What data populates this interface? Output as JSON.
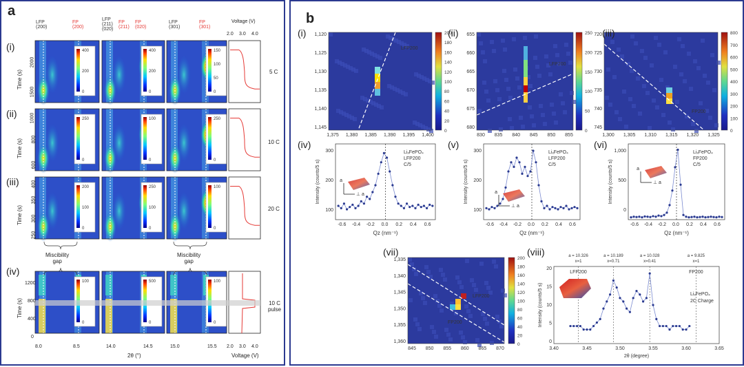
{
  "panel_a": {
    "label": "a",
    "top_labels": [
      {
        "text": "LFP",
        "sub": "(200)",
        "color": "#333"
      },
      {
        "text": "FP",
        "sub": "(200)",
        "color": "#e53935"
      },
      {
        "text": "LFP",
        "sub": "(211)\n(020)",
        "color": "#333"
      },
      {
        "text": "FP",
        "sub": "(211)",
        "color": "#e53935"
      },
      {
        "text": "FP",
        "sub": "(020)",
        "color": "#e53935"
      },
      {
        "text": "LFP",
        "sub": "(301)",
        "color": "#333"
      },
      {
        "text": "FP",
        "sub": "(301)",
        "color": "#e53935"
      }
    ],
    "voltage_axis_title": "Voltage (V)",
    "voltage_ticks": [
      "2.0",
      "3.0",
      "4.0"
    ],
    "rows": [
      {
        "label": "(i)",
        "rate": "5 C",
        "y_ticks": [
          "2000",
          "1500"
        ],
        "cb1": [
          "400",
          "200",
          "0"
        ],
        "cb2": [
          "400",
          "200",
          "0"
        ],
        "cb3": [
          "150",
          "100",
          "50",
          "0"
        ]
      },
      {
        "label": "(ii)",
        "rate": "10 C",
        "y_ticks": [
          "1000",
          "800",
          "600"
        ],
        "cb1": [
          "250",
          "0"
        ],
        "cb2": [
          "100",
          "0"
        ],
        "cb3": [
          "250",
          "0"
        ]
      },
      {
        "label": "(iii)",
        "rate": "20 C",
        "y_ticks": [
          "400",
          "350",
          "300",
          "250"
        ],
        "cb1": [
          "200",
          "100",
          "0"
        ],
        "cb2": [
          "250",
          "100",
          "0"
        ],
        "cb3": [
          "100",
          "0"
        ]
      },
      {
        "label": "(iv)",
        "rate": "10 C",
        "rate2": "pulse",
        "y_ticks": [
          "1200",
          "800",
          "400",
          "0"
        ],
        "cb1": [
          "100",
          "0"
        ],
        "cb2": [
          "500",
          "0"
        ],
        "cb3": [
          "100",
          "0"
        ]
      }
    ],
    "time_label": "Time (s)",
    "gap_label_1": "Miscibility",
    "gap_label_2": "gap",
    "x_ticks": [
      "8.0",
      "8.5",
      "14.0",
      "14.5",
      "15.0",
      "15.5",
      "2.0",
      "3.0",
      "4.0"
    ],
    "x_axis_title": "2θ (°)",
    "voltage_bottom_title": "Voltage (V)"
  },
  "panel_b": {
    "label": "b",
    "maps": [
      {
        "label": "(i)",
        "line_label": "LFP200",
        "y_ticks": [
          "1,120",
          "1,125",
          "1,130",
          "1,135",
          "1,140",
          "1,145"
        ],
        "x_ticks": [
          "1,375",
          "1,380",
          "1,385",
          "1,390",
          "1,395",
          "1,400"
        ],
        "cb": [
          "200",
          "180",
          "160",
          "140",
          "120",
          "100",
          "80",
          "60",
          "40",
          "20",
          "0"
        ]
      },
      {
        "label": "(ii)",
        "line_label": "LFP200",
        "y_ticks": [
          "655",
          "660",
          "665",
          "670",
          "675",
          "680"
        ],
        "x_ticks": [
          "830",
          "835",
          "840",
          "845",
          "850",
          "855"
        ],
        "cb": [
          "250",
          "200",
          "150",
          "100",
          "50",
          "0"
        ]
      },
      {
        "label": "(iii)",
        "line_label": "FP200",
        "y_ticks": [
          "720",
          "725",
          "730",
          "735",
          "740",
          "745"
        ],
        "x_ticks": [
          "1,300",
          "1,305",
          "1,310",
          "1,315",
          "1,320",
          "1,325"
        ],
        "cb": [
          "800",
          "700",
          "600",
          "500",
          "400",
          "300",
          "200",
          "100",
          "0"
        ]
      }
    ],
    "profiles": [
      {
        "label": "(iv)",
        "legend": [
          "LiₓFePO₄",
          "LFP200",
          "C/5"
        ],
        "y_ticks": [
          "300",
          "200",
          "100"
        ],
        "x_ticks": [
          "-0.6",
          "-0.4",
          "-0.2",
          "0.0",
          "0.2",
          "0.4",
          "0.6"
        ],
        "y_title": "Intensity (counts/5 s)",
        "x_title": "Qᴢ (nm⁻¹)",
        "axis_a": "a",
        "axis_perp": "⊥ a"
      },
      {
        "label": "(v)",
        "legend": [
          "LiₓFePO₄",
          "LFP200",
          "C/5"
        ],
        "y_ticks": [
          "300",
          "200",
          "100"
        ],
        "x_ticks": [
          "-0.6",
          "-0.4",
          "-0.2",
          "0.0",
          "0.2",
          "0.4",
          "0.6"
        ],
        "y_title": "Intensity (counts/5 s)",
        "x_title": "Qᴢ (nm⁻¹)",
        "axis_a": "a",
        "axis_perp": "⊥ a"
      },
      {
        "label": "(vi)",
        "legend": [
          "LiₓFePO₄",
          "FP200",
          "C/5"
        ],
        "y_ticks": [
          "1,000",
          "500",
          "0"
        ],
        "x_ticks": [
          "-0.6",
          "-0.4",
          "-0.2",
          "0.0",
          "0.2",
          "0.4",
          "0.6"
        ],
        "y_title": "Intensity (counts/5 s)",
        "x_title": "Qᴢ (nm⁻¹)",
        "axis_a": "a",
        "axis_perp": "⊥ a"
      }
    ],
    "map_vii": {
      "label": "(vii)",
      "line1": "LFP200",
      "line2": "FP200",
      "y_ticks": [
        "1,335",
        "1,340",
        "1,345",
        "1,350",
        "1,355",
        "1,360"
      ],
      "x_ticks": [
        "845",
        "850",
        "855",
        "860",
        "865",
        "870"
      ],
      "cb": [
        "200",
        "180",
        "160",
        "140",
        "120",
        "100",
        "80",
        "60",
        "40",
        "20",
        "0"
      ]
    },
    "plot_viii": {
      "label": "(viii)",
      "top_notes": [
        {
          "a": "a = 10.326",
          "x": "x=1"
        },
        {
          "a": "a = 10.189",
          "x": "x=0.71"
        },
        {
          "a": "a = 10.028",
          "x": "x=0.41"
        },
        {
          "a": "a = 9.825",
          "x": "x=1"
        }
      ],
      "lfp_label": "LFP200",
      "fp_label": "FP200",
      "legend": [
        "LiₓFePO₄",
        "2C Charge"
      ],
      "y_ticks": [
        "20",
        "15",
        "10",
        "5",
        "0"
      ],
      "x_ticks": [
        "3.40",
        "3.45",
        "3.50",
        "3.55",
        "3.60",
        "3.65"
      ],
      "y_title": "Intensity (counts/5 s)",
      "x_title": "2θ (degree)"
    }
  },
  "chart_data": [
    {
      "type": "line",
      "title": "(iv)",
      "xlabel": "Qᴢ (nm⁻¹)",
      "ylabel": "Intensity (counts/5 s)",
      "xlim": [
        -0.7,
        0.7
      ],
      "ylim": [
        50,
        380
      ],
      "x": [
        -0.66,
        -0.62,
        -0.58,
        -0.54,
        -0.5,
        -0.46,
        -0.42,
        -0.38,
        -0.34,
        -0.3,
        -0.26,
        -0.22,
        -0.18,
        -0.14,
        -0.1,
        -0.06,
        -0.02,
        0.02,
        0.06,
        0.1,
        0.14,
        0.18,
        0.22,
        0.26,
        0.3,
        0.34,
        0.38,
        0.42,
        0.46,
        0.5,
        0.54,
        0.58,
        0.62,
        0.66
      ],
      "series": [
        {
          "values": [
            110,
            100,
            120,
            95,
            105,
            115,
            100,
            110,
            130,
            120,
            150,
            140,
            170,
            200,
            250,
            300,
            340,
            320,
            260,
            200,
            150,
            120,
            110,
            100,
            120,
            105,
            110,
            100,
            115,
            105,
            110,
            100,
            115,
            110
          ]
        }
      ]
    },
    {
      "type": "line",
      "title": "(v)",
      "xlabel": "Qᴢ (nm⁻¹)",
      "ylabel": "Intensity (counts/5 s)",
      "xlim": [
        -0.7,
        0.7
      ],
      "ylim": [
        50,
        380
      ],
      "x": [
        -0.66,
        -0.62,
        -0.58,
        -0.54,
        -0.5,
        -0.46,
        -0.42,
        -0.38,
        -0.34,
        -0.3,
        -0.26,
        -0.22,
        -0.18,
        -0.14,
        -0.1,
        -0.06,
        -0.02,
        0.02,
        0.06,
        0.1,
        0.14,
        0.18,
        0.22,
        0.26,
        0.3,
        0.34,
        0.38,
        0.42,
        0.46,
        0.5,
        0.54,
        0.58,
        0.62,
        0.66
      ],
      "series": [
        {
          "values": [
            100,
            95,
            105,
            100,
            110,
            120,
            140,
            190,
            260,
            300,
            280,
            320,
            300,
            250,
            280,
            240,
            260,
            350,
            300,
            200,
            130,
            100,
            110,
            95,
            105,
            100,
            95,
            105,
            100,
            110,
            95,
            100,
            105,
            100
          ]
        }
      ]
    },
    {
      "type": "line",
      "title": "(vi)",
      "xlabel": "Qᴢ (nm⁻¹)",
      "ylabel": "Intensity (counts/5 s)",
      "xlim": [
        -0.7,
        0.7
      ],
      "ylim": [
        0,
        1300
      ],
      "x": [
        -0.66,
        -0.62,
        -0.58,
        -0.54,
        -0.5,
        -0.46,
        -0.42,
        -0.38,
        -0.34,
        -0.3,
        -0.26,
        -0.22,
        -0.18,
        -0.14,
        -0.1,
        -0.06,
        -0.02,
        0.02,
        0.06,
        0.1,
        0.14,
        0.18,
        0.22,
        0.26,
        0.3,
        0.34,
        0.38,
        0.42,
        0.46,
        0.5,
        0.54,
        0.58,
        0.62,
        0.66
      ],
      "series": [
        {
          "values": [
            40,
            50,
            45,
            50,
            40,
            55,
            50,
            45,
            60,
            50,
            70,
            60,
            80,
            120,
            250,
            500,
            900,
            1200,
            600,
            80,
            50,
            40,
            45,
            50,
            40,
            45,
            50,
            40,
            45,
            50,
            45,
            40,
            50,
            45
          ]
        }
      ]
    },
    {
      "type": "line",
      "title": "(viii)",
      "xlabel": "2θ (degree)",
      "ylabel": "Intensity (counts/5 s)",
      "xlim": [
        3.4,
        3.65
      ],
      "ylim": [
        0,
        22
      ],
      "x": [
        3.425,
        3.43,
        3.435,
        3.44,
        3.445,
        3.45,
        3.455,
        3.46,
        3.465,
        3.47,
        3.475,
        3.48,
        3.485,
        3.49,
        3.495,
        3.5,
        3.505,
        3.51,
        3.515,
        3.52,
        3.525,
        3.53,
        3.535,
        3.54,
        3.545,
        3.55,
        3.555,
        3.56,
        3.565,
        3.57,
        3.575,
        3.58,
        3.585,
        3.59,
        3.595,
        3.6,
        3.605
      ],
      "series": [
        {
          "values": [
            5,
            5,
            5,
            5,
            4,
            4,
            4,
            5,
            6,
            7,
            10,
            12,
            14,
            18,
            16,
            13,
            12,
            10,
            9,
            13,
            15,
            14,
            12,
            13,
            20,
            11,
            7,
            5,
            5,
            5,
            4,
            5,
            5,
            5,
            4,
            4,
            5
          ]
        }
      ]
    }
  ]
}
